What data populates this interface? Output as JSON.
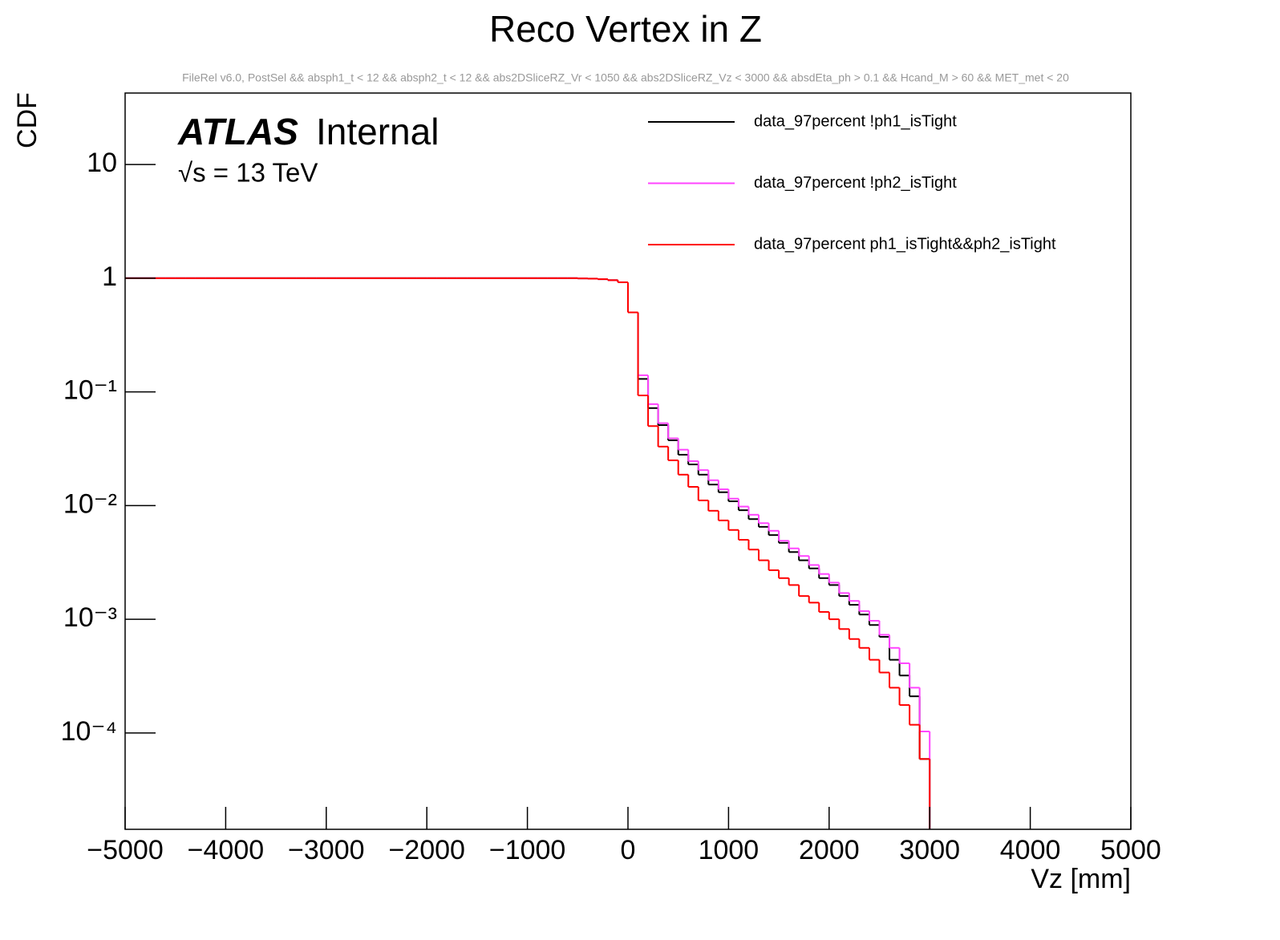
{
  "chart_data": {
    "type": "histogram",
    "title": "Reco Vertex in Z",
    "subtitle": "FileRel v6.0, PostSel &&  absph1_t < 12 && absph2_t < 12 && abs2DSliceRZ_Vr < 1050 && abs2DSliceRZ_Vz < 3000 && absdEta_ph > 0.1 && Hcand_M > 60 && MET_met < 20",
    "annotations": [
      "ATLAS",
      "Internal",
      "√s = 13 TeV"
    ],
    "xlabel": "Vz [mm]",
    "ylabel": "CDF",
    "log_y": true,
    "xlim": [
      -5000,
      5000
    ],
    "ylim": [
      1.42e-05,
      42.5
    ],
    "xticks": [
      {
        "value": -5000,
        "label": "−5000"
      },
      {
        "value": -4000,
        "label": "−4000"
      },
      {
        "value": -3000,
        "label": "−3000"
      },
      {
        "value": -2000,
        "label": "−2000"
      },
      {
        "value": -1000,
        "label": "−1000"
      },
      0,
      1000,
      2000,
      3000,
      4000,
      5000
    ],
    "yticks": [
      {
        "value": 0.0001,
        "label": "10⁻⁴"
      },
      {
        "value": 0.001,
        "label": "10⁻³"
      },
      {
        "value": 0.01,
        "label": "10⁻²"
      },
      {
        "value": 0.1,
        "label": "10⁻¹"
      },
      1,
      10
    ],
    "bins": [
      -5000,
      -4900,
      -4800,
      -4700,
      -4600,
      -4500,
      -4400,
      -4300,
      -4200,
      -4100,
      -4000,
      -3900,
      -3800,
      -3700,
      -3600,
      -3500,
      -3400,
      -3300,
      -3200,
      -3100,
      -3000,
      -2900,
      -2800,
      -2700,
      -2600,
      -2500,
      -2400,
      -2300,
      -2200,
      -2100,
      -2000,
      -1900,
      -1800,
      -1700,
      -1600,
      -1500,
      -1400,
      -1300,
      -1200,
      -1100,
      -1000,
      -900,
      -800,
      -700,
      -600,
      -500,
      -400,
      -300,
      -200,
      -100,
      0,
      100,
      200,
      300,
      400,
      500,
      600,
      700,
      800,
      900,
      1000,
      1100,
      1200,
      1300,
      1400,
      1500,
      1600,
      1700,
      1800,
      1900,
      2000,
      2100,
      2200,
      2300,
      2400,
      2500,
      2600,
      2700,
      2800,
      2900,
      3000,
      3100,
      3200,
      3300,
      3400,
      3500,
      3600,
      3700,
      3800,
      3900,
      4000,
      4100,
      4200,
      4300,
      4400,
      4500,
      4600,
      4700,
      4800,
      4900,
      5000
    ],
    "legend": "top-right",
    "series": [
      {
        "name": "data_97percent !ph1_isTight",
        "color": "#000000",
        "values": [
          1,
          1,
          1,
          1,
          1,
          1,
          1,
          1,
          1,
          1,
          1,
          1,
          1,
          1,
          1,
          1,
          1,
          1,
          1,
          1,
          1,
          1,
          1,
          1,
          1,
          1,
          1,
          1,
          1,
          1,
          1,
          1,
          1,
          1,
          1,
          1,
          1,
          1,
          1,
          1,
          1,
          1,
          1,
          1,
          1,
          0.995,
          0.99,
          0.98,
          0.96,
          0.92,
          0.5,
          0.13,
          0.072,
          0.051,
          0.0375,
          0.028,
          0.023,
          0.0187,
          0.0153,
          0.0131,
          0.0109,
          0.0091,
          0.0076,
          0.0065,
          0.0055,
          0.0047,
          0.0039,
          0.0033,
          0.0028,
          0.0023,
          0.002,
          0.0016,
          0.00134,
          0.0011,
          0.00089,
          0.0007,
          0.00044,
          0.00032,
          0.00021,
          5.9e-05,
          0,
          0,
          0,
          0,
          0,
          0,
          0,
          0,
          0,
          0,
          0,
          0,
          0,
          0,
          0,
          0,
          0,
          0,
          0,
          0
        ]
      },
      {
        "name": "data_97percent !ph2_isTight",
        "color": "#ff44ff",
        "values": [
          1,
          1,
          1,
          1,
          1,
          1,
          1,
          1,
          1,
          1,
          1,
          1,
          1,
          1,
          1,
          1,
          1,
          1,
          1,
          1,
          1,
          1,
          1,
          1,
          1,
          1,
          1,
          1,
          1,
          1,
          1,
          1,
          1,
          1,
          1,
          1,
          1,
          1,
          1,
          1,
          1,
          1,
          1,
          1,
          1,
          0.995,
          0.99,
          0.98,
          0.96,
          0.92,
          0.5,
          0.14,
          0.078,
          0.053,
          0.039,
          0.031,
          0.0246,
          0.0205,
          0.0167,
          0.0139,
          0.0115,
          0.0098,
          0.0083,
          0.007,
          0.006,
          0.0049,
          0.0042,
          0.0036,
          0.003,
          0.0025,
          0.0021,
          0.0017,
          0.00145,
          0.00118,
          0.00097,
          0.00073,
          0.00056,
          0.00041,
          0.00025,
          0.000103,
          0,
          0,
          0,
          0,
          0,
          0,
          0,
          0,
          0,
          0,
          0,
          0,
          0,
          0,
          0,
          0,
          0,
          0,
          0,
          0
        ]
      },
      {
        "name": "data_97percent ph1_isTight&&ph2_isTight",
        "color": "#ff0000",
        "values": [
          1,
          1,
          1,
          1,
          1,
          1,
          1,
          1,
          1,
          1,
          1,
          1,
          1,
          1,
          1,
          1,
          1,
          1,
          1,
          1,
          1,
          1,
          1,
          1,
          1,
          1,
          1,
          1,
          1,
          1,
          1,
          1,
          1,
          1,
          1,
          1,
          1,
          1,
          1,
          1,
          1,
          1,
          1,
          1,
          1,
          0.995,
          0.99,
          0.98,
          0.96,
          0.92,
          0.5,
          0.093,
          0.05,
          0.033,
          0.025,
          0.0187,
          0.0146,
          0.0111,
          0.009,
          0.0074,
          0.0061,
          0.005,
          0.0041,
          0.0033,
          0.0027,
          0.0023,
          0.002,
          0.0016,
          0.0014,
          0.00116,
          0.001,
          0.00082,
          0.00067,
          0.00056,
          0.00044,
          0.00034,
          0.00025,
          0.000176,
          0.000118,
          5.9e-05,
          0,
          0,
          0,
          0,
          0,
          0,
          0,
          0,
          0,
          0,
          0,
          0,
          0,
          0,
          0,
          0,
          0,
          0,
          0,
          0
        ]
      }
    ]
  }
}
